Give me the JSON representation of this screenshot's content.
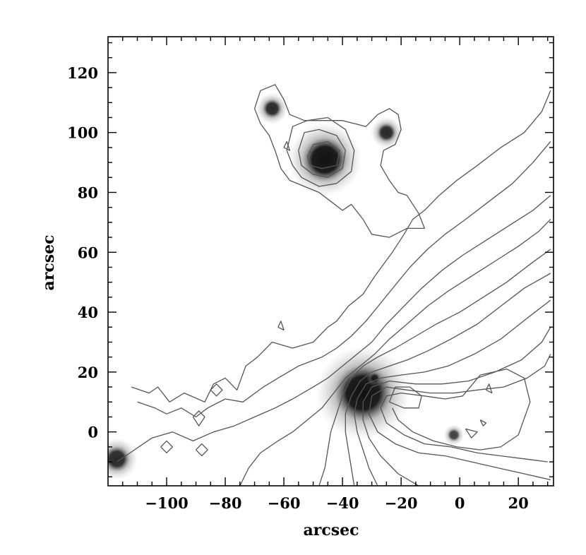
{
  "chart_data": {
    "type": "contour",
    "xlabel": "arcsec",
    "ylabel": "arcsec",
    "xlim": [
      -120,
      32
    ],
    "ylim": [
      -18,
      132
    ],
    "xticks": [
      -100,
      -80,
      -60,
      -40,
      -20,
      0,
      20
    ],
    "yticks": [
      0,
      20,
      40,
      60,
      80,
      100,
      120
    ],
    "colors": {
      "contour": "#555555",
      "axis": "#000000",
      "source": "#111111"
    },
    "sources": [
      {
        "x": -46,
        "y": 91,
        "peak": 1.0,
        "extent": 7
      },
      {
        "x": -33,
        "y": 13,
        "peak": 1.0,
        "extent": 9
      },
      {
        "x": -64,
        "y": 108,
        "peak": 0.9,
        "extent": 3
      },
      {
        "x": -25,
        "y": 100,
        "peak": 0.9,
        "extent": 3
      },
      {
        "x": -117,
        "y": -9,
        "peak": 0.9,
        "extent": 4
      },
      {
        "x": -2,
        "y": -1,
        "peak": 0.8,
        "extent": 2
      },
      {
        "x": -29,
        "y": 18,
        "peak": 0.8,
        "extent": 1.5
      }
    ],
    "contours": [
      [
        [
          -112,
          15
        ],
        [
          -106,
          13
        ],
        [
          -103,
          15
        ],
        [
          -99,
          10
        ],
        [
          -94,
          13
        ],
        [
          -87,
          10
        ],
        [
          -84,
          16
        ],
        [
          -80,
          18
        ],
        [
          -76,
          14
        ],
        [
          -73,
          22
        ],
        [
          -69,
          25
        ],
        [
          -64,
          30
        ],
        [
          -57,
          28
        ],
        [
          -50,
          30
        ],
        [
          -45,
          35
        ],
        [
          -42,
          37
        ],
        [
          -38,
          42
        ],
        [
          -33,
          46
        ],
        [
          -29,
          52
        ],
        [
          -23,
          60
        ],
        [
          -19,
          66
        ],
        [
          -16,
          71
        ],
        [
          -12,
          74
        ],
        [
          -7,
          79
        ],
        [
          -1,
          84
        ],
        [
          6,
          89
        ],
        [
          14,
          95
        ],
        [
          22,
          100
        ],
        [
          28,
          107
        ],
        [
          31,
          114
        ]
      ],
      [
        [
          -110,
          10
        ],
        [
          -104,
          8
        ],
        [
          -100,
          6
        ],
        [
          -95,
          8
        ],
        [
          -90,
          5
        ],
        [
          -86,
          8
        ],
        [
          -80,
          11
        ],
        [
          -74,
          10
        ],
        [
          -67,
          15
        ],
        [
          -62,
          18
        ],
        [
          -55,
          22
        ],
        [
          -47,
          25
        ],
        [
          -42,
          28
        ],
        [
          -37,
          32
        ],
        [
          -32,
          37
        ],
        [
          -27,
          43
        ],
        [
          -22,
          49
        ],
        [
          -17,
          55
        ],
        [
          -11,
          61
        ],
        [
          -5,
          66
        ],
        [
          2,
          71
        ],
        [
          10,
          77
        ],
        [
          18,
          83
        ],
        [
          25,
          90
        ],
        [
          31,
          97
        ]
      ],
      [
        [
          -117,
          -10
        ],
        [
          -111,
          -6
        ],
        [
          -105,
          -2
        ],
        [
          -98,
          0
        ],
        [
          -91,
          -3
        ],
        [
          -84,
          0
        ],
        [
          -77,
          2
        ],
        [
          -70,
          5
        ],
        [
          -63,
          8
        ],
        [
          -57,
          11
        ],
        [
          -50,
          15
        ],
        [
          -45,
          18
        ],
        [
          -40,
          22
        ],
        [
          -35,
          26
        ],
        [
          -30,
          30
        ],
        [
          -25,
          36
        ],
        [
          -19,
          42
        ],
        [
          -13,
          48
        ],
        [
          -6,
          54
        ],
        [
          1,
          59
        ],
        [
          9,
          64
        ],
        [
          17,
          69
        ],
        [
          25,
          74
        ],
        [
          31,
          79
        ]
      ],
      [
        [
          -75,
          -18
        ],
        [
          -72,
          -12
        ],
        [
          -68,
          -7
        ],
        [
          -62,
          -3
        ],
        [
          -57,
          0
        ],
        [
          -52,
          4
        ],
        [
          -47,
          8
        ],
        [
          -43,
          13
        ],
        [
          -39,
          18
        ],
        [
          -34,
          22
        ],
        [
          -29,
          26
        ],
        [
          -24,
          31
        ],
        [
          -18,
          36
        ],
        [
          -11,
          42
        ],
        [
          -4,
          47
        ],
        [
          4,
          52
        ],
        [
          12,
          57
        ],
        [
          20,
          62
        ],
        [
          27,
          67
        ],
        [
          31,
          71
        ]
      ],
      [
        [
          -48,
          -18
        ],
        [
          -46,
          -12
        ],
        [
          -45,
          -6
        ],
        [
          -44,
          0
        ],
        [
          -42,
          6
        ],
        [
          -40,
          12
        ],
        [
          -37,
          18
        ],
        [
          -33,
          22
        ],
        [
          -28,
          25
        ],
        [
          -22,
          28
        ],
        [
          -15,
          32
        ],
        [
          -8,
          36
        ],
        [
          0,
          40
        ],
        [
          8,
          45
        ],
        [
          16,
          50
        ],
        [
          24,
          56
        ],
        [
          31,
          61
        ]
      ],
      [
        [
          -36,
          -18
        ],
        [
          -37,
          -12
        ],
        [
          -38,
          -6
        ],
        [
          -39,
          0
        ],
        [
          -39,
          6
        ],
        [
          -37,
          12
        ],
        [
          -34,
          17
        ],
        [
          -30,
          20
        ],
        [
          -24,
          22
        ],
        [
          -18,
          24
        ],
        [
          -11,
          27
        ],
        [
          -3,
          31
        ],
        [
          6,
          36
        ],
        [
          14,
          42
        ],
        [
          22,
          48
        ],
        [
          31,
          53
        ]
      ],
      [
        [
          -28,
          -18
        ],
        [
          -31,
          -12
        ],
        [
          -33,
          -6
        ],
        [
          -35,
          0
        ],
        [
          -36,
          6
        ],
        [
          -35,
          11
        ],
        [
          -32,
          16
        ],
        [
          -27,
          18
        ],
        [
          -20,
          19
        ],
        [
          -12,
          20
        ],
        [
          -4,
          22
        ],
        [
          5,
          26
        ],
        [
          14,
          31
        ],
        [
          23,
          38
        ],
        [
          31,
          44
        ]
      ],
      [
        [
          -14,
          -18
        ],
        [
          -21,
          -14
        ],
        [
          -27,
          -8
        ],
        [
          -31,
          -2
        ],
        [
          -33,
          4
        ],
        [
          -33,
          10
        ],
        [
          -30,
          15
        ],
        [
          -24,
          17
        ],
        [
          -15,
          16
        ],
        [
          -6,
          16
        ],
        [
          3,
          17
        ],
        [
          12,
          20
        ],
        [
          21,
          24
        ],
        [
          28,
          30
        ],
        [
          31,
          35
        ]
      ],
      [
        [
          31,
          -16
        ],
        [
          22,
          -14
        ],
        [
          13,
          -12
        ],
        [
          4,
          -10
        ],
        [
          -5,
          -8
        ],
        [
          -14,
          -7
        ],
        [
          -22,
          -4
        ],
        [
          -28,
          0
        ],
        [
          -31,
          6
        ],
        [
          -30,
          12
        ],
        [
          -25,
          15
        ],
        [
          -18,
          14
        ],
        [
          -10,
          13
        ],
        [
          -2,
          13
        ],
        [
          6,
          14
        ],
        [
          15,
          15
        ],
        [
          23,
          18
        ],
        [
          29,
          22
        ],
        [
          31,
          26
        ]
      ],
      [
        [
          30,
          -10
        ],
        [
          22,
          -9
        ],
        [
          14,
          -8
        ],
        [
          6,
          -7
        ],
        [
          -3,
          -5
        ],
        [
          -12,
          -4
        ],
        [
          -19,
          -1
        ],
        [
          -25,
          3
        ],
        [
          -27,
          8
        ],
        [
          -25,
          12
        ],
        [
          -20,
          13
        ],
        [
          -12,
          12
        ],
        [
          -5,
          11
        ],
        [
          1,
          12
        ],
        [
          7,
          19
        ],
        [
          16,
          21
        ],
        [
          22,
          18
        ],
        [
          24,
          10
        ],
        [
          20,
          -1
        ],
        [
          14,
          -5
        ],
        [
          7,
          -6
        ],
        [
          -1,
          -5
        ],
        [
          -9,
          -3
        ],
        [
          -16,
          0
        ],
        [
          -21,
          4
        ],
        [
          -23,
          8
        ]
      ],
      [
        [
          -24,
          10
        ],
        [
          -19,
          8
        ],
        [
          -14,
          8
        ],
        [
          -13,
          12
        ],
        [
          -17,
          15
        ],
        [
          -22,
          15
        ],
        [
          -24,
          10
        ]
      ],
      [
        [
          -90,
          -6
        ],
        [
          -88,
          -8
        ],
        [
          -86,
          -6
        ],
        [
          -88,
          -4
        ],
        [
          -90,
          -6
        ]
      ],
      [
        [
          -102,
          -5
        ],
        [
          -100,
          -7
        ],
        [
          -98,
          -5
        ],
        [
          -100,
          -3
        ],
        [
          -102,
          -5
        ]
      ],
      [
        [
          -91,
          5
        ],
        [
          -89,
          2
        ],
        [
          -87,
          5
        ],
        [
          -89,
          7
        ],
        [
          -91,
          5
        ]
      ],
      [
        [
          -85,
          14
        ],
        [
          -83,
          12
        ],
        [
          -81,
          14
        ],
        [
          -83,
          16
        ],
        [
          -85,
          14
        ]
      ],
      [
        [
          9,
          14
        ],
        [
          11,
          13
        ],
        [
          10,
          16
        ],
        [
          9,
          14
        ]
      ],
      [
        [
          2,
          1
        ],
        [
          6,
          0
        ],
        [
          4,
          -2
        ],
        [
          2,
          1
        ]
      ],
      [
        [
          7,
          4
        ],
        [
          9,
          3
        ],
        [
          8,
          2
        ],
        [
          7,
          4
        ]
      ],
      [
        [
          -62,
          35
        ],
        [
          -60,
          34
        ],
        [
          -61,
          37
        ],
        [
          -62,
          35
        ]
      ],
      [
        [
          -70,
          108
        ],
        [
          -68,
          114
        ],
        [
          -63,
          116
        ],
        [
          -60,
          111
        ],
        [
          -58,
          106
        ],
        [
          -53,
          104
        ],
        [
          -48,
          104
        ],
        [
          -40,
          104
        ],
        [
          -32,
          102
        ],
        [
          -28,
          106
        ],
        [
          -24,
          108
        ],
        [
          -21,
          106
        ],
        [
          -20,
          101
        ],
        [
          -22,
          96
        ],
        [
          -26,
          94
        ],
        [
          -27,
          89
        ],
        [
          -24,
          84
        ],
        [
          -21,
          80
        ],
        [
          -18,
          79
        ],
        [
          -14,
          73
        ],
        [
          -12,
          68
        ],
        [
          -18,
          68
        ],
        [
          -24,
          65
        ],
        [
          -30,
          66
        ],
        [
          -33,
          71
        ],
        [
          -37,
          76
        ],
        [
          -40,
          74
        ],
        [
          -44,
          77
        ],
        [
          -48,
          80
        ],
        [
          -53,
          82
        ],
        [
          -58,
          84
        ],
        [
          -61,
          88
        ],
        [
          -63,
          94
        ],
        [
          -65,
          99
        ],
        [
          -68,
          103
        ],
        [
          -70,
          108
        ]
      ],
      [
        [
          -59,
          94
        ],
        [
          -57,
          102
        ],
        [
          -52,
          104
        ],
        [
          -45,
          105
        ],
        [
          -39,
          101
        ],
        [
          -36,
          94
        ],
        [
          -37,
          87
        ],
        [
          -42,
          83
        ],
        [
          -48,
          82
        ],
        [
          -54,
          85
        ],
        [
          -57,
          89
        ],
        [
          -59,
          94
        ]
      ],
      [
        [
          -55,
          94
        ],
        [
          -53,
          100
        ],
        [
          -48,
          101
        ],
        [
          -42,
          99
        ],
        [
          -39,
          94
        ],
        [
          -40,
          88
        ],
        [
          -45,
          85
        ],
        [
          -50,
          86
        ],
        [
          -54,
          89
        ],
        [
          -55,
          94
        ]
      ],
      [
        [
          -52,
          92
        ],
        [
          -50,
          96
        ],
        [
          -45,
          97
        ],
        [
          -41,
          94
        ],
        [
          -42,
          89
        ],
        [
          -47,
          88
        ],
        [
          -51,
          89
        ],
        [
          -52,
          92
        ]
      ],
      [
        [
          -60,
          95
        ],
        [
          -59,
          97
        ],
        [
          -58,
          94
        ],
        [
          -60,
          95
        ]
      ]
    ]
  }
}
